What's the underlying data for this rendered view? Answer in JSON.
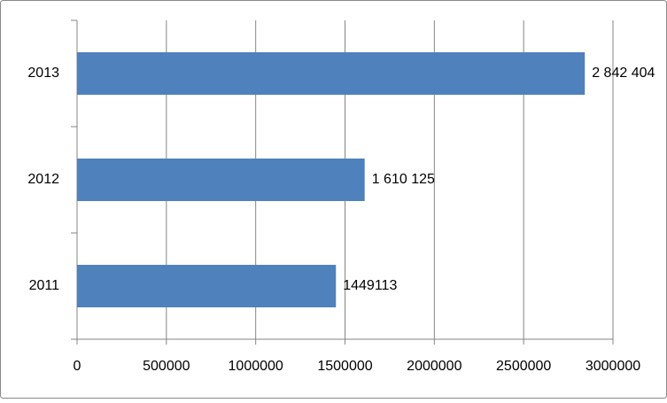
{
  "chart_data": {
    "type": "bar",
    "orientation": "horizontal",
    "categories": [
      "2011",
      "2012",
      "2013"
    ],
    "values": [
      1449113,
      1610125,
      2842404
    ],
    "value_labels": [
      "1449113",
      "1 610 125",
      "2 842 404"
    ],
    "color": "#4f81bd",
    "xlim": [
      0,
      3000000
    ],
    "xticks": [
      0,
      500000,
      1000000,
      1500000,
      2000000,
      2500000,
      3000000
    ],
    "grid": true
  }
}
